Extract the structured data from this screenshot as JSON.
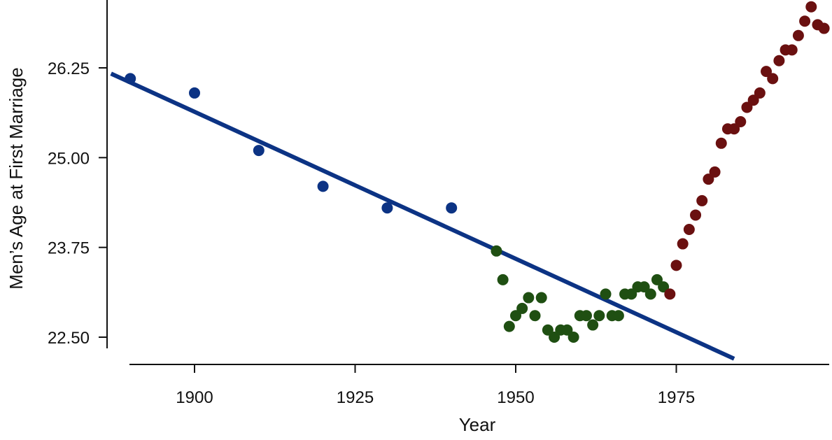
{
  "chart_data": {
    "type": "scatter",
    "xlabel": "Year",
    "ylabel": "Men’s Age at First Marriage",
    "xlim": [
      1889,
      1997
    ],
    "ylim": [
      22.1,
      27.15
    ],
    "x_ticks": [
      1900,
      1925,
      1950,
      1975
    ],
    "y_ticks": [
      22.5,
      23.75,
      25.0,
      26.25
    ],
    "y_tick_labels": [
      "22.50",
      "23.75",
      "25.00",
      "26.25"
    ],
    "grid": false,
    "legend": "none",
    "colors": {
      "blue": "#0c3384",
      "green": "#1f4f12",
      "red": "#6a1010",
      "line": "#0c3384",
      "axis": "#111111"
    },
    "trend_line": {
      "x": [
        1887,
        1984
      ],
      "y": [
        26.17,
        22.2
      ]
    },
    "series": [
      {
        "color": "#0c3384",
        "x": [
          1890,
          1900,
          1910,
          1920,
          1930,
          1940
        ],
        "y": [
          26.1,
          25.9,
          25.1,
          24.6,
          24.3,
          24.3
        ]
      },
      {
        "color": "#1f4f12",
        "x": [
          1947,
          1948,
          1949,
          1950,
          1951,
          1952,
          1953,
          1954,
          1955,
          1956,
          1957,
          1958,
          1959,
          1960,
          1961,
          1962,
          1963,
          1964,
          1965,
          1966,
          1967,
          1968,
          1969,
          1970,
          1971,
          1972,
          1973
        ],
        "y": [
          23.7,
          23.3,
          22.65,
          22.8,
          22.9,
          23.05,
          22.8,
          23.05,
          22.6,
          22.5,
          22.6,
          22.6,
          22.5,
          22.8,
          22.8,
          22.67,
          22.8,
          23.1,
          22.8,
          22.8,
          23.1,
          23.1,
          23.2,
          23.2,
          23.1,
          23.3,
          23.2
        ]
      },
      {
        "color": "#6a1010",
        "x": [
          1974,
          1975,
          1976,
          1977,
          1978,
          1979,
          1980,
          1981,
          1982,
          1983,
          1984,
          1985,
          1986,
          1987,
          1988,
          1989,
          1990,
          1991,
          1992,
          1993,
          1994,
          1995,
          1996,
          1997
        ],
        "y": [
          23.1,
          23.5,
          23.8,
          24.0,
          24.2,
          24.4,
          24.7,
          24.8,
          25.2,
          25.4,
          25.4,
          25.5,
          25.7,
          25.8,
          25.9,
          26.2,
          26.1,
          26.35,
          26.5,
          26.5,
          26.7,
          26.9,
          27.1,
          26.85
        ]
      }
    ],
    "extra_point": {
      "x": 1998,
      "y": 26.8
    }
  }
}
